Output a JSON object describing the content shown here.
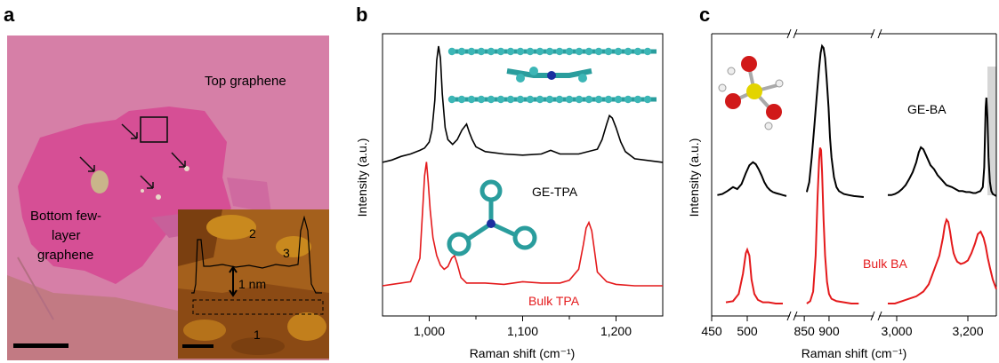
{
  "panels": {
    "a": {
      "label": "a",
      "annotations": {
        "top": "Top graphene",
        "bottom_lines": [
          "Bottom few-",
          "layer",
          "graphene"
        ]
      },
      "inset": {
        "labels": [
          "2",
          "3",
          "1"
        ],
        "step_label": "1 nm"
      },
      "colors": {
        "substrate": "#c27a83",
        "top_graphene": "#d67fa7",
        "bottom_graphene": "#d64f95"
      }
    },
    "b": {
      "label": "b",
      "ylabel": "Intensity (a.u.)",
      "series_labels": {
        "ge": "GE-TPA",
        "bulk": "Bulk TPA"
      }
    },
    "c": {
      "label": "c",
      "ylabel": "Intensity (a.u.)",
      "series_labels": {
        "ge": "GE-BA",
        "bulk": "Bulk BA"
      }
    }
  },
  "chart_data": [
    {
      "id": "b",
      "type": "line",
      "xlabel": "Raman shift (cm⁻¹)",
      "ylabel": "Intensity (a.u.)",
      "xlim": [
        950,
        1250
      ],
      "xticks": [
        1000,
        1100,
        1200
      ],
      "xtick_labels": [
        "1,000",
        "1,100",
        "1,200"
      ],
      "y_ticks_shown": false,
      "series": [
        {
          "name": "GE-TPA",
          "color": "#000000",
          "x": [
            950,
            960,
            970,
            980,
            990,
            995,
            1000,
            1003,
            1006,
            1008,
            1010,
            1012,
            1014,
            1017,
            1020,
            1025,
            1030,
            1035,
            1040,
            1043,
            1046,
            1050,
            1060,
            1080,
            1100,
            1120,
            1130,
            1140,
            1160,
            1180,
            1185,
            1190,
            1193,
            1196,
            1200,
            1205,
            1210,
            1220,
            1250
          ],
          "y": [
            0.03,
            0.05,
            0.08,
            0.1,
            0.13,
            0.15,
            0.2,
            0.3,
            0.55,
            0.88,
            1.0,
            0.9,
            0.6,
            0.32,
            0.22,
            0.18,
            0.22,
            0.3,
            0.35,
            0.28,
            0.22,
            0.16,
            0.12,
            0.1,
            0.09,
            0.1,
            0.13,
            0.1,
            0.1,
            0.14,
            0.22,
            0.35,
            0.42,
            0.4,
            0.32,
            0.2,
            0.12,
            0.06,
            0.03
          ]
        },
        {
          "name": "Bulk TPA",
          "color": "#e41a1c",
          "x": [
            950,
            960,
            980,
            990,
            993,
            995,
            997,
            999,
            1001,
            1004,
            1008,
            1012,
            1016,
            1020,
            1024,
            1027,
            1030,
            1034,
            1040,
            1060,
            1080,
            1100,
            1120,
            1140,
            1150,
            1160,
            1165,
            1168,
            1171,
            1174,
            1177,
            1180,
            1190,
            1200,
            1220,
            1250
          ],
          "y": [
            0.0,
            0.01,
            0.03,
            0.2,
            0.55,
            0.8,
            0.9,
            0.75,
            0.55,
            0.35,
            0.22,
            0.15,
            0.12,
            0.14,
            0.2,
            0.22,
            0.16,
            0.06,
            0.02,
            0.02,
            0.01,
            0.03,
            0.02,
            0.02,
            0.04,
            0.12,
            0.3,
            0.42,
            0.46,
            0.4,
            0.25,
            0.1,
            0.03,
            0.01,
            0.0,
            0.0
          ]
        }
      ]
    },
    {
      "id": "c",
      "type": "line",
      "xlabel": "Raman shift (cm⁻¹)",
      "ylabel": "Intensity (a.u.)",
      "broken_axis": true,
      "segments": [
        {
          "xlim": [
            450,
            560
          ],
          "xticks": [
            450,
            500
          ],
          "xtick_labels": [
            "450",
            "500"
          ]
        },
        {
          "xlim": [
            830,
            990
          ],
          "xticks": [
            850,
            900
          ],
          "xtick_labels": [
            "850",
            "900"
          ]
        },
        {
          "xlim": [
            2950,
            3280
          ],
          "xticks": [
            3000,
            3200
          ],
          "xtick_labels": [
            "3,000",
            "3,200"
          ]
        }
      ],
      "highlight_band": [
        3255,
        3280
      ],
      "y_ticks_shown": false,
      "series": [
        {
          "name": "GE-BA",
          "color": "#000000",
          "segments": [
            {
              "x": [
                458,
                465,
                472,
                480,
                486,
                492,
                498,
                503,
                508,
                512,
                516,
                520,
                524,
                528,
                532,
                536,
                540,
                545,
                550,
                555
              ],
              "y": [
                0.02,
                0.03,
                0.06,
                0.1,
                0.08,
                0.13,
                0.24,
                0.32,
                0.35,
                0.33,
                0.28,
                0.22,
                0.15,
                0.1,
                0.07,
                0.05,
                0.04,
                0.03,
                0.02,
                0.01
              ]
            },
            {
              "x": [
                855,
                860,
                865,
                870,
                875,
                880,
                883,
                886,
                889,
                892,
                895,
                899,
                902,
                905,
                910,
                915,
                920,
                930,
                940,
                950,
                970
              ],
              "y": [
                0.05,
                0.15,
                0.4,
                0.7,
                1.0,
                1.3,
                1.45,
                1.52,
                1.5,
                1.4,
                1.2,
                0.9,
                0.6,
                0.4,
                0.2,
                0.1,
                0.06,
                0.03,
                0.02,
                0.01,
                0.0
              ]
            },
            {
              "x": [
                2975,
                2985,
                2995,
                3005,
                3015,
                3025,
                3035,
                3045,
                3055,
                3062,
                3068,
                3075,
                3085,
                3095,
                3105,
                3115,
                3125,
                3140,
                3155,
                3165,
                3175,
                3185,
                3195,
                3205,
                3215,
                3222,
                3228,
                3235,
                3242,
                3246,
                3248,
                3250,
                3252,
                3255,
                3258,
                3262,
                3266,
                3270,
                3275,
                3280
              ],
              "y": [
                0.02,
                0.02,
                0.03,
                0.05,
                0.08,
                0.12,
                0.18,
                0.25,
                0.35,
                0.45,
                0.5,
                0.48,
                0.4,
                0.32,
                0.28,
                0.22,
                0.18,
                0.12,
                0.1,
                0.08,
                0.06,
                0.06,
                0.05,
                0.05,
                0.04,
                0.04,
                0.05,
                0.06,
                0.1,
                0.3,
                0.6,
                0.9,
                1.0,
                0.8,
                0.4,
                0.15,
                0.06,
                0.03,
                0.02,
                0.01
              ]
            }
          ]
        },
        {
          "name": "Bulk BA",
          "color": "#e41a1c",
          "segments": [
            {
              "x": [
                470,
                480,
                488,
                494,
                498,
                500,
                503,
                506,
                510,
                515,
                522,
                530,
                540,
                550
              ],
              "y": [
                0.01,
                0.02,
                0.08,
                0.25,
                0.42,
                0.45,
                0.4,
                0.2,
                0.08,
                0.03,
                0.01,
                0.01,
                0.0,
                0.0
              ]
            },
            {
              "x": [
                855,
                862,
                868,
                873,
                877,
                880,
                882,
                884,
                886,
                889,
                892,
                896,
                900,
                905,
                915,
                930,
                945,
                960
              ],
              "y": [
                0.0,
                0.02,
                0.1,
                0.4,
                0.9,
                1.2,
                1.3,
                1.28,
                1.1,
                0.7,
                0.4,
                0.18,
                0.08,
                0.04,
                0.02,
                0.01,
                0.0,
                0.0
              ]
            },
            {
              "x": [
                2975,
                2995,
                3015,
                3035,
                3055,
                3075,
                3090,
                3100,
                3110,
                3120,
                3130,
                3135,
                3140,
                3145,
                3150,
                3155,
                3160,
                3165,
                3170,
                3180,
                3190,
                3200,
                3210,
                3220,
                3228,
                3236,
                3244,
                3250,
                3256,
                3262,
                3270,
                3280
              ],
              "y": [
                0.0,
                0.0,
                0.02,
                0.04,
                0.06,
                0.1,
                0.16,
                0.24,
                0.32,
                0.4,
                0.55,
                0.65,
                0.7,
                0.68,
                0.6,
                0.5,
                0.42,
                0.38,
                0.35,
                0.33,
                0.34,
                0.36,
                0.42,
                0.5,
                0.58,
                0.6,
                0.55,
                0.48,
                0.38,
                0.3,
                0.2,
                0.12
              ]
            }
          ]
        }
      ]
    }
  ]
}
